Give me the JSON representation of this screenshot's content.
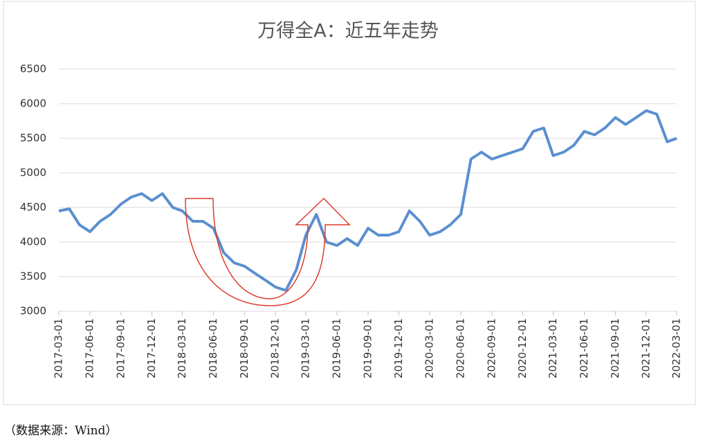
{
  "chart_data": {
    "type": "line",
    "title": "万得全A：近五年走势",
    "x": [
      "2017-03-01",
      "2017-04-01",
      "2017-05-01",
      "2017-06-01",
      "2017-07-01",
      "2017-08-01",
      "2017-09-01",
      "2017-10-01",
      "2017-11-01",
      "2017-12-01",
      "2018-01-01",
      "2018-02-01",
      "2018-03-01",
      "2018-04-01",
      "2018-05-01",
      "2018-06-01",
      "2018-07-01",
      "2018-08-01",
      "2018-09-01",
      "2018-10-01",
      "2018-11-01",
      "2018-12-01",
      "2019-01-01",
      "2019-02-01",
      "2019-03-01",
      "2019-04-01",
      "2019-05-01",
      "2019-06-01",
      "2019-07-01",
      "2019-08-01",
      "2019-09-01",
      "2019-10-01",
      "2019-11-01",
      "2019-12-01",
      "2020-01-01",
      "2020-02-01",
      "2020-03-01",
      "2020-04-01",
      "2020-05-01",
      "2020-06-01",
      "2020-07-01",
      "2020-08-01",
      "2020-09-01",
      "2020-10-01",
      "2020-11-01",
      "2020-12-01",
      "2021-01-01",
      "2021-02-01",
      "2021-03-01",
      "2021-04-01",
      "2021-05-01",
      "2021-06-01",
      "2021-07-01",
      "2021-08-01",
      "2021-09-01",
      "2021-10-01",
      "2021-11-01",
      "2021-12-01",
      "2022-01-01",
      "2022-02-01",
      "2022-03-01"
    ],
    "series": [
      {
        "color": "#5b8fd0",
        "values": [
          4450,
          4480,
          4250,
          4150,
          4300,
          4400,
          4550,
          4650,
          4700,
          4600,
          4700,
          4500,
          4450,
          4300,
          4300,
          4200,
          3850,
          3700,
          3650,
          3550,
          3450,
          3350,
          3300,
          3600,
          4100,
          4400,
          4000,
          3950,
          4050,
          3950,
          4200,
          4100,
          4100,
          4150,
          4450,
          4300,
          4100,
          4150,
          4250,
          4400,
          5200,
          5300,
          5200,
          5250,
          5300,
          5350,
          5600,
          5650,
          5250,
          5300,
          5400,
          5600,
          5550,
          5650,
          5800,
          5700,
          5800,
          5900,
          5850,
          5450,
          5500
        ]
      }
    ],
    "xlim": [
      "2017-03-01",
      "2022-03-01"
    ],
    "xticks": [
      "2017-03-01",
      "2017-06-01",
      "2017-09-01",
      "2017-12-01",
      "2018-03-01",
      "2018-06-01",
      "2018-09-01",
      "2018-12-01",
      "2019-03-01",
      "2019-06-01",
      "2019-09-01",
      "2019-12-01",
      "2020-03-01",
      "2020-06-01",
      "2020-09-01",
      "2020-12-01",
      "2021-03-01",
      "2021-06-01",
      "2021-09-01",
      "2021-12-01",
      "2022-03-01"
    ],
    "ylim": [
      3000,
      6500
    ],
    "yticks": [
      3000,
      3500,
      4000,
      4500,
      5000,
      5500,
      6000,
      6500
    ],
    "grid": true
  },
  "source": "（数据来源：Wind）"
}
